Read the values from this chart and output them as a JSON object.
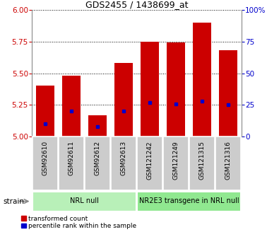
{
  "title": "GDS2455 / 1438699_at",
  "samples": [
    "GSM92610",
    "GSM92611",
    "GSM92612",
    "GSM92613",
    "GSM121242",
    "GSM121249",
    "GSM121315",
    "GSM121316"
  ],
  "bar_heights": [
    5.4,
    5.48,
    5.17,
    5.58,
    5.75,
    5.74,
    5.9,
    5.68
  ],
  "percentile_ranks": [
    10,
    20,
    8,
    20,
    27,
    26,
    28,
    25
  ],
  "groups": [
    {
      "label": "NRL null",
      "start": 0,
      "end": 4,
      "color": "#b8f0b8"
    },
    {
      "label": "NR2E3 transgene in NRL null",
      "start": 4,
      "end": 8,
      "color": "#90e890"
    }
  ],
  "ymin": 5.0,
  "ymax": 6.0,
  "yticks": [
    5.0,
    5.25,
    5.5,
    5.75,
    6.0
  ],
  "right_yticks": [
    0,
    25,
    50,
    75,
    100
  ],
  "bar_color": "#cc0000",
  "blue_color": "#0000cc",
  "strain_label": "strain",
  "legend_items": [
    {
      "label": "transformed count",
      "color": "#cc0000"
    },
    {
      "label": "percentile rank within the sample",
      "color": "#0000cc"
    }
  ],
  "bar_width": 0.7,
  "tick_label_bg": "#cccccc",
  "title_fontsize": 9,
  "axis_fontsize": 7.5,
  "label_fontsize": 6.5,
  "group_fontsize": 7
}
